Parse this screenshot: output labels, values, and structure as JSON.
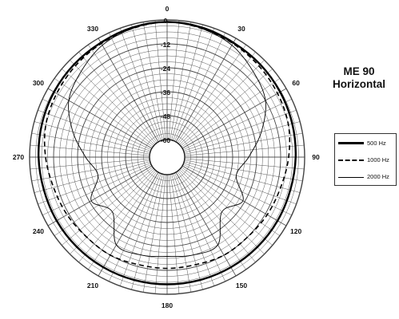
{
  "title": "ME 90",
  "subtitle": "Horizontal",
  "chart_data": {
    "type": "polar",
    "angle_unit": "degrees",
    "angle_labels": [
      "0",
      "30",
      "60",
      "90",
      "120",
      "150",
      "180",
      "210",
      "240",
      "270",
      "300",
      "330"
    ],
    "radial_labels": [
      "0",
      "-12",
      "-24",
      "-36",
      "-48",
      "-60"
    ],
    "rlim": [
      -60,
      0
    ],
    "grid": true,
    "legend_position": "right",
    "angles": [
      0,
      15,
      30,
      45,
      60,
      75,
      90,
      105,
      120,
      135,
      150,
      165,
      180,
      195,
      210,
      225,
      240,
      255,
      270,
      285,
      300,
      315,
      330,
      345
    ],
    "series": [
      {
        "name": "500 Hz",
        "style": "solid-thick",
        "values": [
          -1,
          -1.5,
          -2.5,
          -3,
          -3.5,
          -4,
          -4.5,
          -5,
          -5,
          -5,
          -5,
          -5,
          -5,
          -5,
          -5,
          -5,
          -5,
          -5,
          -4.5,
          -4,
          -3.5,
          -3,
          -2.5,
          -1.5
        ]
      },
      {
        "name": "1000 Hz",
        "style": "dashed",
        "values": [
          -1,
          -2,
          -3,
          -4,
          -5,
          -6,
          -8,
          -10,
          -11,
          -12,
          -12,
          -13,
          -13,
          -13,
          -12,
          -12,
          -11,
          -10,
          -8,
          -6,
          -5,
          -4,
          -3,
          -2
        ]
      },
      {
        "name": "2000 Hz",
        "style": "solid-thin",
        "values": [
          -1,
          -2,
          -4,
          -8,
          -12,
          -20,
          -28,
          -33,
          -25,
          -30,
          -18,
          -18,
          -19,
          -18,
          -18,
          -30,
          -25,
          -33,
          -28,
          -20,
          -12,
          -8,
          -4,
          -2
        ]
      }
    ]
  }
}
